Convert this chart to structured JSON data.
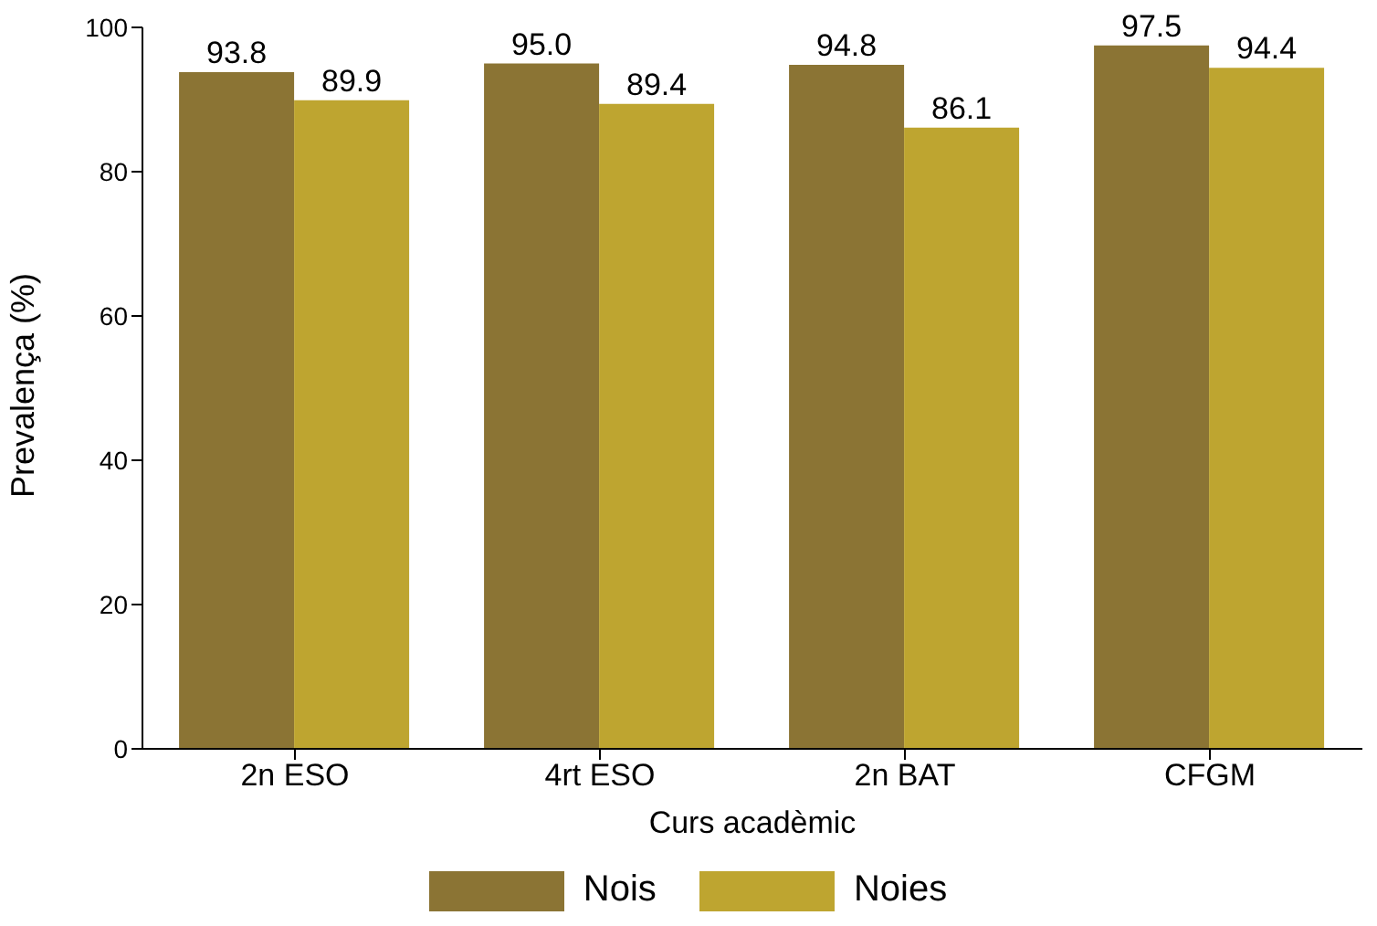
{
  "chart_data": {
    "type": "bar",
    "xlabel": "Curs acadèmic",
    "ylabel": "Prevalença (%)",
    "categories": [
      "2n ESO",
      "4rt ESO",
      "2n BAT",
      "CFGM"
    ],
    "series": [
      {
        "name": "Nois",
        "color": "#8b7434",
        "values": [
          93.8,
          95.0,
          94.8,
          97.5
        ],
        "value_labels": [
          "93.8",
          "95.0",
          "94.8",
          "97.5"
        ]
      },
      {
        "name": "Noies",
        "color": "#bea530",
        "values": [
          89.9,
          89.4,
          86.1,
          94.4
        ],
        "value_labels": [
          "89.9",
          "89.4",
          "86.1",
          "94.4"
        ]
      }
    ],
    "ylim": [
      0,
      100
    ],
    "yticks": [
      0,
      20,
      40,
      60,
      80,
      100
    ],
    "grid": false,
    "legend": "bottom"
  }
}
